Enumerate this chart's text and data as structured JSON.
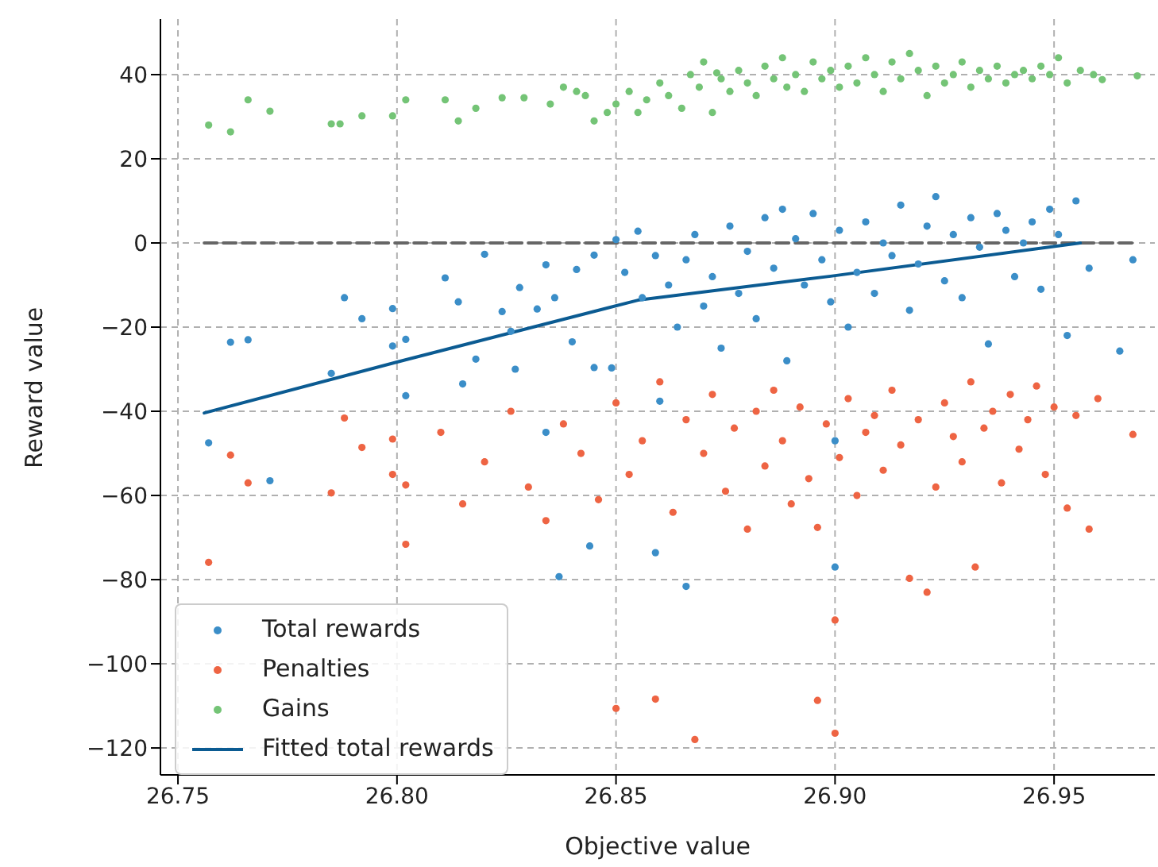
{
  "chart_data": {
    "type": "scatter",
    "xlabel": "Objective value",
    "ylabel": "Reward value",
    "xlim": [
      26.746,
      26.973
    ],
    "xticks": [
      {
        "value": 26.75,
        "label": "26.75"
      },
      {
        "value": 26.8,
        "label": "26.80"
      },
      {
        "value": 26.85,
        "label": "26.85"
      },
      {
        "value": 26.9,
        "label": "26.90"
      },
      {
        "value": 26.95,
        "label": "26.95"
      }
    ],
    "ylim": [
      -126.4,
      53.2
    ],
    "yticks": [
      -120,
      -100,
      -80,
      -60,
      -40,
      -20,
      0,
      20,
      40
    ],
    "grid": true,
    "legend": "bottom left",
    "series": [
      {
        "name": "Total rewards",
        "marker": "circle",
        "color": "#3b8ec8",
        "x": [
          26.757,
          26.762,
          26.766,
          26.771,
          26.785,
          26.788,
          26.792,
          26.799,
          26.799,
          26.802,
          26.802,
          26.811,
          26.814,
          26.815,
          26.818,
          26.82,
          26.824,
          26.826,
          26.827,
          26.828,
          26.832,
          26.834,
          26.834,
          26.836,
          26.837,
          26.84,
          26.841,
          26.844,
          26.845,
          26.845,
          26.849,
          26.85,
          26.852,
          26.855,
          26.856,
          26.859,
          26.859,
          26.86,
          26.862,
          26.864,
          26.866,
          26.866,
          26.868,
          26.87,
          26.872,
          26.874,
          26.876,
          26.878,
          26.88,
          26.882,
          26.884,
          26.886,
          26.888,
          26.889,
          26.891,
          26.893,
          26.895,
          26.897,
          26.899,
          26.9,
          26.9,
          26.901,
          26.903,
          26.905,
          26.907,
          26.909,
          26.911,
          26.913,
          26.915,
          26.917,
          26.919,
          26.921,
          26.923,
          26.925,
          26.927,
          26.929,
          26.931,
          26.933,
          26.935,
          26.937,
          26.939,
          26.941,
          26.943,
          26.945,
          26.947,
          26.949,
          26.951,
          26.953,
          26.955,
          26.958,
          26.965,
          26.968
        ],
        "values": [
          -47.5,
          -23.6,
          -23,
          -56.5,
          -31,
          -13,
          -18,
          -24.5,
          -15.6,
          -22.9,
          -36.3,
          -8.3,
          -14,
          -33.5,
          -27.6,
          -2.7,
          -16.3,
          -21,
          -30,
          -10.6,
          -15.7,
          -5.2,
          -45,
          -13,
          -79.3,
          -23.5,
          -6.3,
          -72,
          -2.9,
          -29.6,
          -29.7,
          0.8,
          -7,
          2.8,
          -13,
          -3,
          -73.6,
          -37.6,
          -10,
          -20,
          -81.6,
          -4,
          2,
          -15,
          -8,
          -25,
          4,
          -12,
          -2,
          -18,
          6,
          -6,
          8,
          -28,
          1,
          -10,
          7,
          -4,
          -14,
          -47,
          -77,
          3,
          -20,
          -7,
          5,
          -12,
          0,
          -3,
          9,
          -16,
          -5,
          4,
          11,
          -9,
          2,
          -13,
          6,
          -1,
          -24,
          7,
          3,
          -8,
          0,
          5,
          -11,
          8,
          2,
          -22,
          10,
          -6,
          -25.7,
          -4
        ]
      },
      {
        "name": "Penalties",
        "marker": "circle",
        "color": "#ee6443",
        "x": [
          26.757,
          26.762,
          26.766,
          26.785,
          26.788,
          26.792,
          26.799,
          26.799,
          26.802,
          26.802,
          26.81,
          26.815,
          26.82,
          26.826,
          26.83,
          26.834,
          26.838,
          26.842,
          26.846,
          26.85,
          26.85,
          26.853,
          26.856,
          26.859,
          26.86,
          26.863,
          26.866,
          26.868,
          26.87,
          26.872,
          26.875,
          26.877,
          26.88,
          26.882,
          26.884,
          26.886,
          26.888,
          26.89,
          26.892,
          26.894,
          26.896,
          26.896,
          26.898,
          26.9,
          26.9,
          26.901,
          26.903,
          26.905,
          26.907,
          26.909,
          26.911,
          26.913,
          26.915,
          26.917,
          26.919,
          26.921,
          26.923,
          26.925,
          26.927,
          26.929,
          26.931,
          26.932,
          26.934,
          26.936,
          26.938,
          26.94,
          26.942,
          26.944,
          26.946,
          26.948,
          26.95,
          26.953,
          26.955,
          26.958,
          26.96,
          26.968
        ],
        "values": [
          -75.9,
          -50.4,
          -57,
          -59.4,
          -41.6,
          -48.6,
          -46.6,
          -55,
          -57.5,
          -71.6,
          -45,
          -62,
          -52,
          -40,
          -58,
          -66,
          -43,
          -50,
          -61,
          -110.6,
          -38,
          -55,
          -47,
          -108.4,
          -33,
          -64,
          -42,
          -118,
          -50,
          -36,
          -59,
          -44,
          -68,
          -40,
          -53,
          -35,
          -47,
          -62,
          -39,
          -56,
          -108.7,
          -67.6,
          -43,
          -116.5,
          -89.6,
          -51,
          -37,
          -60,
          -45,
          -41,
          -54,
          -35,
          -48,
          -79.7,
          -42,
          -83,
          -58,
          -38,
          -46,
          -52,
          -33,
          -77,
          -44,
          -40,
          -57,
          -36,
          -49,
          -42,
          -34,
          -55,
          -39,
          -63,
          -41,
          -68,
          -37,
          -45.5
        ]
      },
      {
        "name": "Gains",
        "marker": "circle",
        "color": "#74c476",
        "x": [
          26.757,
          26.762,
          26.766,
          26.771,
          26.785,
          26.787,
          26.792,
          26.799,
          26.802,
          26.811,
          26.814,
          26.818,
          26.824,
          26.829,
          26.835,
          26.838,
          26.841,
          26.843,
          26.845,
          26.848,
          26.85,
          26.853,
          26.855,
          26.857,
          26.86,
          26.862,
          26.865,
          26.867,
          26.869,
          26.87,
          26.872,
          26.873,
          26.874,
          26.876,
          26.878,
          26.88,
          26.882,
          26.884,
          26.886,
          26.888,
          26.889,
          26.891,
          26.893,
          26.895,
          26.897,
          26.899,
          26.901,
          26.903,
          26.905,
          26.907,
          26.909,
          26.911,
          26.913,
          26.915,
          26.917,
          26.919,
          26.921,
          26.923,
          26.925,
          26.927,
          26.929,
          26.931,
          26.933,
          26.935,
          26.937,
          26.939,
          26.941,
          26.943,
          26.945,
          26.947,
          26.949,
          26.951,
          26.953,
          26.956,
          26.959,
          26.961,
          26.969
        ],
        "values": [
          28,
          26.4,
          34,
          31.3,
          28.3,
          28.3,
          30.2,
          30.2,
          34,
          34,
          29,
          32,
          34.5,
          34.5,
          33,
          37,
          36,
          35,
          29,
          31,
          33,
          36,
          31,
          34,
          38,
          35,
          32,
          40,
          37,
          43,
          31,
          40.4,
          39,
          36,
          41,
          38,
          35,
          42,
          39,
          44,
          37,
          40,
          36,
          43,
          39,
          41,
          37,
          42,
          38,
          44,
          40,
          36,
          43,
          39,
          45,
          41,
          35,
          42,
          38,
          40,
          43,
          37,
          41,
          39,
          42,
          38,
          40,
          41,
          39,
          42,
          40,
          44,
          38,
          41,
          40,
          38.8,
          39.7
        ]
      },
      {
        "type": "line",
        "marker": "none",
        "line_style": "dashed",
        "color": "#666666",
        "x": [
          26.756,
          26.969
        ],
        "values": [
          0,
          0
        ]
      },
      {
        "name": "Fitted total rewards",
        "type": "line",
        "marker": "none",
        "line_style": "solid",
        "color": "#0b5b92",
        "x": [
          26.756,
          26.8,
          26.855,
          26.899,
          26.956
        ],
        "values": [
          -40.4,
          -28.3,
          -13.6,
          -7.9,
          0
        ]
      }
    ]
  }
}
